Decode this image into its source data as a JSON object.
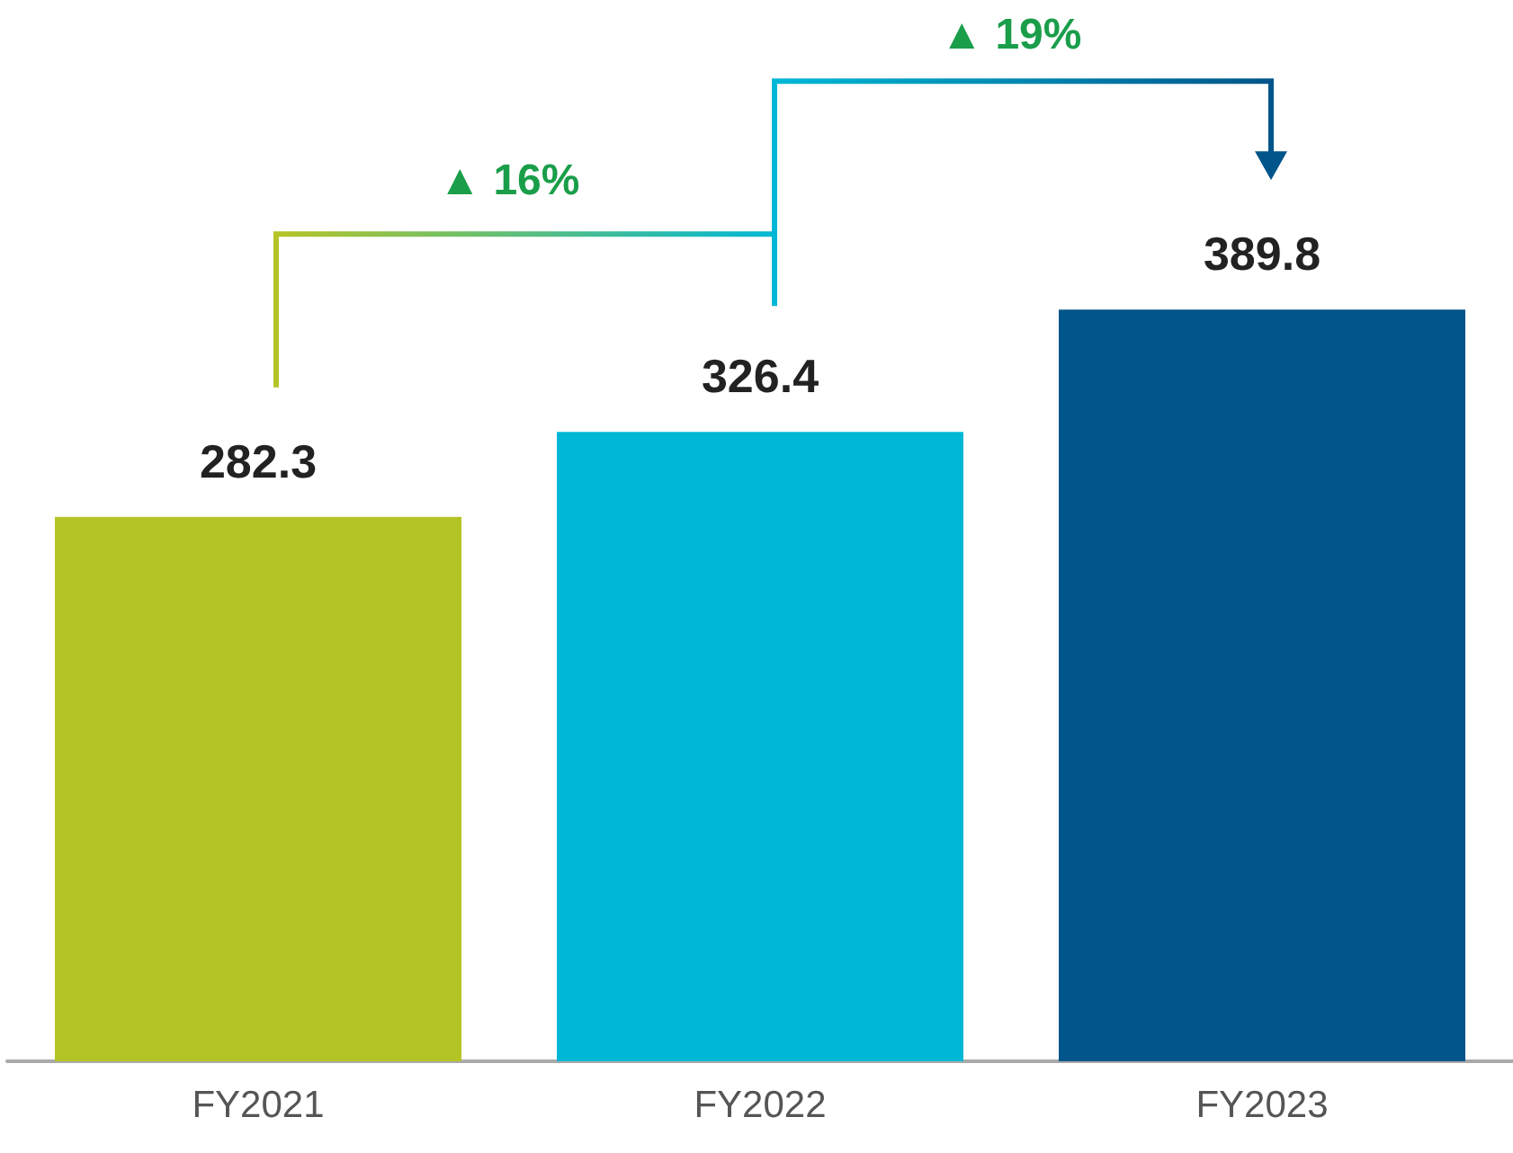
{
  "chart_data": {
    "type": "bar",
    "categories": [
      "FY2021",
      "FY2022",
      "FY2023"
    ],
    "values": [
      282.3,
      326.4,
      389.8
    ],
    "colors": [
      "#b5c425",
      "#00b8d6",
      "#00558b"
    ],
    "data_labels": true,
    "annotations": [
      "▲ 16%",
      "▲ 19%"
    ]
  }
}
